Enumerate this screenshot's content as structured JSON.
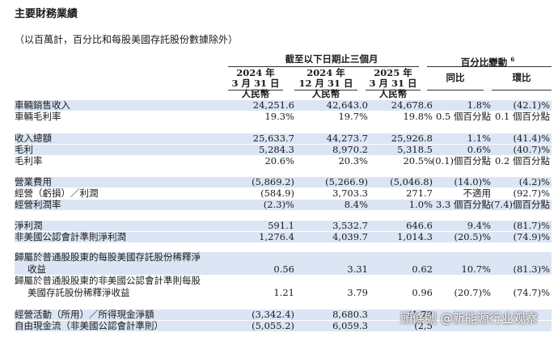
{
  "title": "主要財務業績",
  "subtitle": "（以百萬計，百分比和每股美國存託股份數據除外）",
  "header": {
    "period_group": "截至以下日期止三個月",
    "change_group": "百分比變動",
    "change_footnote": "6",
    "periods": [
      {
        "line1": "2024 年",
        "line2": "3 月 31 日",
        "currency": "人民幣"
      },
      {
        "line1": "2024 年",
        "line2": "12 月 31 日",
        "currency": "人民幣"
      },
      {
        "line1": "2025 年",
        "line2": "3 月 31 日",
        "currency": "人民幣"
      }
    ],
    "yoy": "同比",
    "qoq": "環比"
  },
  "rows": [
    {
      "label": "車輛銷售收入",
      "values": [
        "24,251.6",
        "42,643.0",
        "24,678.6",
        "1.8%",
        "(42.1)%"
      ]
    },
    {
      "label": "車輛毛利率",
      "values": [
        "19.3%",
        "19.7%",
        "19.8%",
        "0.5 個百分點",
        "0.1 個百分點"
      ]
    },
    {
      "label": "收入總額",
      "values": [
        "25,633.7",
        "44,273.7",
        "25,926.8",
        "1.1%",
        "(41.4)%"
      ]
    },
    {
      "label": "毛利",
      "values": [
        "5,284.3",
        "8,970.2",
        "5,318.5",
        "0.6%",
        "(40.7)%"
      ]
    },
    {
      "label": "毛利率",
      "values": [
        "20.6%",
        "20.3%",
        "20.5%",
        "(0.1)個百分點",
        "0.2 個百分點"
      ]
    },
    {
      "label": "營業費用",
      "values": [
        "(5,869.2)",
        "(5,266.9)",
        "(5,046.8)",
        "(14.0)%",
        "(4.2)%"
      ]
    },
    {
      "label": "經營（虧損）／利潤",
      "values": [
        "(584.9)",
        "3,703.3",
        "271.7",
        "不適用",
        "(92.7)%"
      ]
    },
    {
      "label": "經營利潤率",
      "values": [
        "(2.3)%",
        "8.4%",
        "1.0%",
        "3.3 個百分點",
        "(7.4)個百分點"
      ]
    },
    {
      "label": "淨利潤",
      "values": [
        "591.1",
        "3,532.7",
        "646.6",
        "9.4%",
        "(81.7)%"
      ]
    },
    {
      "label": "非美國公認會計準則淨利潤",
      "values": [
        "1,276.4",
        "4,039.7",
        "1,014.3",
        "(20.5)%",
        "(74.9)%"
      ]
    },
    {
      "label_line1": "歸屬於普通股股東的每股美國存託股份稀釋淨",
      "label_line2": "收益",
      "values": [
        "0.56",
        "3.31",
        "0.62",
        "10.7%",
        "(81.3)%"
      ]
    },
    {
      "label_line1": "歸屬於普通股股東的非美國公認會計準則每股",
      "label_line2": "美國存託股份稀釋淨收益",
      "values": [
        "1.21",
        "3.79",
        "0.96",
        "(20.7)%",
        "(74.7)%"
      ]
    },
    {
      "label": "經營活動（所用）／所得現金淨額",
      "values": [
        "(3,342.4)",
        "8,680.3",
        "(1,79",
        "",
        ""
      ]
    },
    {
      "label": "自由現金流（非美國公認會計準則）",
      "values": [
        "(5,055.2)",
        "6,059.3",
        "(2,5",
        "",
        ""
      ]
    }
  ],
  "watermark": "頭條號 @新能源行业观察"
}
